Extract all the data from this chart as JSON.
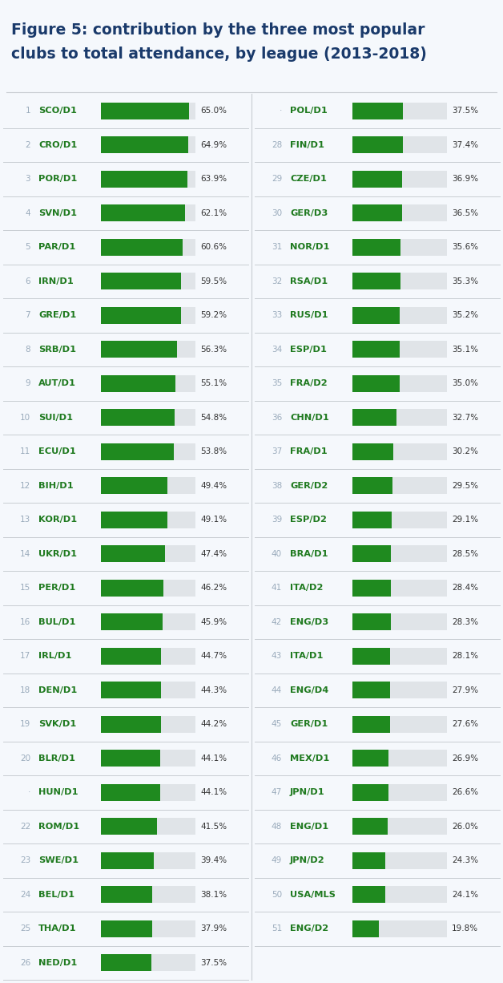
{
  "title_line1": "Figure 5: contribution by the three most popular",
  "title_line2": "clubs to total attendance, by league (2013-2018)",
  "background_color": "#f5f8fc",
  "bar_color": "#1f8a1f",
  "bar_bg_color": "#e0e4e8",
  "separator_color": "#c8cdd2",
  "title_color": "#1a3a6b",
  "rank_color": "#9aabbc",
  "label_color": "#1f7a1f",
  "value_color": "#333333",
  "max_value": 70,
  "left_data": [
    {
      "rank": "1",
      "label": "SCO/D1",
      "value": 65.0
    },
    {
      "rank": "2",
      "label": "CRO/D1",
      "value": 64.9
    },
    {
      "rank": "3",
      "label": "POR/D1",
      "value": 63.9
    },
    {
      "rank": "4",
      "label": "SVN/D1",
      "value": 62.1
    },
    {
      "rank": "5",
      "label": "PAR/D1",
      "value": 60.6
    },
    {
      "rank": "6",
      "label": "IRN/D1",
      "value": 59.5
    },
    {
      "rank": "7",
      "label": "GRE/D1",
      "value": 59.2
    },
    {
      "rank": "8",
      "label": "SRB/D1",
      "value": 56.3
    },
    {
      "rank": "9",
      "label": "AUT/D1",
      "value": 55.1
    },
    {
      "rank": "10",
      "label": "SUI/D1",
      "value": 54.8
    },
    {
      "rank": "11",
      "label": "ECU/D1",
      "value": 53.8
    },
    {
      "rank": "12",
      "label": "BIH/D1",
      "value": 49.4
    },
    {
      "rank": "13",
      "label": "KOR/D1",
      "value": 49.1
    },
    {
      "rank": "14",
      "label": "UKR/D1",
      "value": 47.4
    },
    {
      "rank": "15",
      "label": "PER/D1",
      "value": 46.2
    },
    {
      "rank": "16",
      "label": "BUL/D1",
      "value": 45.9
    },
    {
      "rank": "17",
      "label": "IRL/D1",
      "value": 44.7
    },
    {
      "rank": "18",
      "label": "DEN/D1",
      "value": 44.3
    },
    {
      "rank": "19",
      "label": "SVK/D1",
      "value": 44.2
    },
    {
      "rank": "20",
      "label": "BLR/D1",
      "value": 44.1
    },
    {
      "rank": "·",
      "label": "HUN/D1",
      "value": 44.1
    },
    {
      "rank": "22",
      "label": "ROM/D1",
      "value": 41.5
    },
    {
      "rank": "23",
      "label": "SWE/D1",
      "value": 39.4
    },
    {
      "rank": "24",
      "label": "BEL/D1",
      "value": 38.1
    },
    {
      "rank": "25",
      "label": "THA/D1",
      "value": 37.9
    },
    {
      "rank": "26",
      "label": "NED/D1",
      "value": 37.5
    }
  ],
  "right_data": [
    {
      "rank": "·",
      "label": "POL/D1",
      "value": 37.5
    },
    {
      "rank": "28",
      "label": "FIN/D1",
      "value": 37.4
    },
    {
      "rank": "29",
      "label": "CZE/D1",
      "value": 36.9
    },
    {
      "rank": "30",
      "label": "GER/D3",
      "value": 36.5
    },
    {
      "rank": "31",
      "label": "NOR/D1",
      "value": 35.6
    },
    {
      "rank": "32",
      "label": "RSA/D1",
      "value": 35.3
    },
    {
      "rank": "33",
      "label": "RUS/D1",
      "value": 35.2
    },
    {
      "rank": "34",
      "label": "ESP/D1",
      "value": 35.1
    },
    {
      "rank": "35",
      "label": "FRA/D2",
      "value": 35.0
    },
    {
      "rank": "36",
      "label": "CHN/D1",
      "value": 32.7
    },
    {
      "rank": "37",
      "label": "FRA/D1",
      "value": 30.2
    },
    {
      "rank": "38",
      "label": "GER/D2",
      "value": 29.5
    },
    {
      "rank": "39",
      "label": "ESP/D2",
      "value": 29.1
    },
    {
      "rank": "40",
      "label": "BRA/D1",
      "value": 28.5
    },
    {
      "rank": "41",
      "label": "ITA/D2",
      "value": 28.4
    },
    {
      "rank": "42",
      "label": "ENG/D3",
      "value": 28.3
    },
    {
      "rank": "43",
      "label": "ITA/D1",
      "value": 28.1
    },
    {
      "rank": "44",
      "label": "ENG/D4",
      "value": 27.9
    },
    {
      "rank": "45",
      "label": "GER/D1",
      "value": 27.6
    },
    {
      "rank": "46",
      "label": "MEX/D1",
      "value": 26.9
    },
    {
      "rank": "47",
      "label": "JPN/D1",
      "value": 26.6
    },
    {
      "rank": "48",
      "label": "ENG/D1",
      "value": 26.0
    },
    {
      "rank": "49",
      "label": "JPN/D2",
      "value": 24.3
    },
    {
      "rank": "50",
      "label": "USA/MLS",
      "value": 24.1
    },
    {
      "rank": "51",
      "label": "ENG/D2",
      "value": 19.8
    }
  ]
}
